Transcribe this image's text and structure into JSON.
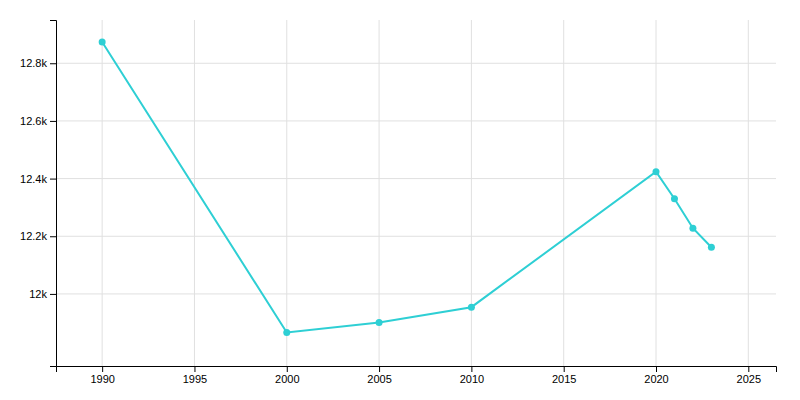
{
  "chart_data": {
    "type": "line",
    "x": [
      1990,
      2000,
      2005,
      2010,
      2020,
      2021,
      2022,
      2023
    ],
    "values": [
      12874,
      11866,
      11901,
      11954,
      12424,
      12330,
      12228,
      12162
    ],
    "color": "#2ECFD4",
    "marker": "circle",
    "xlim": [
      1987.5,
      2026.5
    ],
    "ylim": [
      11750,
      12950
    ],
    "xticks": [
      1990,
      1995,
      2000,
      2005,
      2010,
      2015,
      2020,
      2025
    ],
    "yticks": [
      {
        "value": 12000,
        "label": "12k"
      },
      {
        "value": 12200,
        "label": "12.2k"
      },
      {
        "value": 12400,
        "label": "12.4k"
      },
      {
        "value": 12600,
        "label": "12.6k"
      },
      {
        "value": 12800,
        "label": "12.8k"
      }
    ],
    "grid": true
  }
}
